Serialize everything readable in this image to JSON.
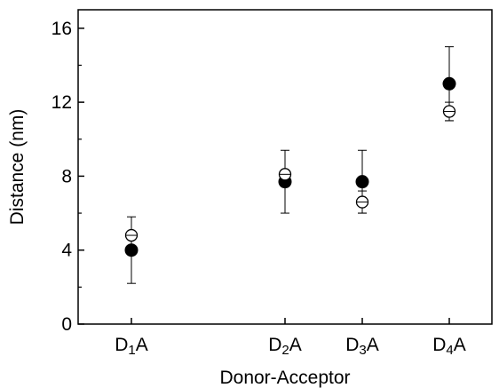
{
  "chart_data": {
    "type": "scatter",
    "xlabel": "Donor-Acceptor",
    "ylabel": "Distance (nm)",
    "ylim": [
      0,
      17
    ],
    "yticks": [
      "0",
      "4",
      "8",
      "12",
      "16"
    ],
    "grid": false,
    "legend": "none",
    "categories": [
      {
        "prefix": "D",
        "sub": "1",
        "suffix": "A"
      },
      {
        "prefix": "D",
        "sub": "2",
        "suffix": "A"
      },
      {
        "prefix": "D",
        "sub": "3",
        "suffix": "A"
      },
      {
        "prefix": "D",
        "sub": "4",
        "suffix": "A"
      }
    ],
    "series": [
      {
        "marker": "filled-circle",
        "values": [
          4.0,
          7.7,
          7.7,
          13.0
        ],
        "err_low": [
          2.2,
          6.0,
          6.0,
          11.0
        ],
        "err_high": [
          5.8,
          9.4,
          9.4,
          15.0
        ]
      },
      {
        "marker": "open-circle-cross",
        "values": [
          4.8,
          8.1,
          6.6,
          11.5
        ],
        "err_low": [
          4.6,
          7.9,
          6.0,
          11.0
        ],
        "err_high": [
          5.0,
          8.3,
          7.2,
          12.0
        ]
      }
    ],
    "colors": {
      "ink": "#000000",
      "background": "#ffffff"
    }
  }
}
